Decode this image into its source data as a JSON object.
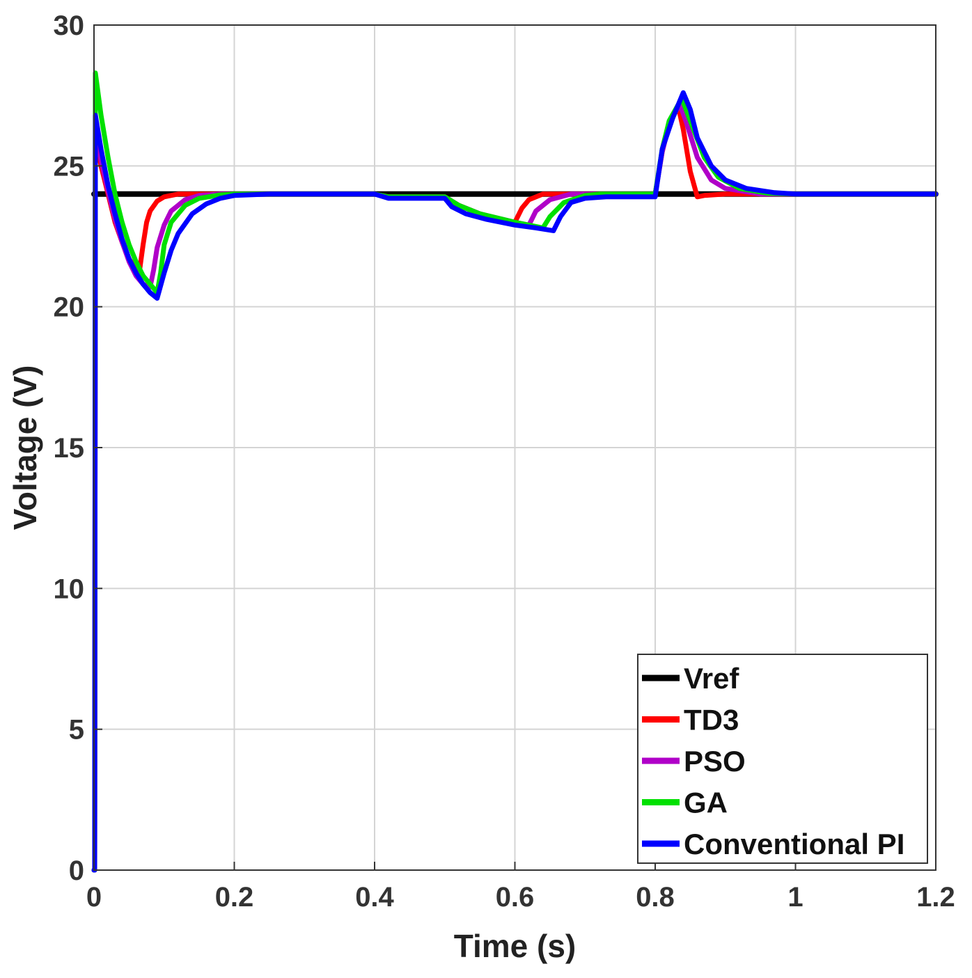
{
  "chart_data": {
    "type": "line",
    "title": "",
    "xlabel": "Time (s)",
    "ylabel": "Voltage (V)",
    "xlim": [
      0,
      1.2
    ],
    "ylim": [
      0,
      30
    ],
    "grid": true,
    "legend_position": "bottom-right",
    "x_ticks": [
      {
        "value": 0,
        "label": "0"
      },
      {
        "value": 0.2,
        "label": "0.2"
      },
      {
        "value": 0.4,
        "label": "0.4"
      },
      {
        "value": 0.6,
        "label": "0.6"
      },
      {
        "value": 0.8,
        "label": "0.8"
      },
      {
        "value": 1,
        "label": "1"
      },
      {
        "value": 1.2,
        "label": "1.2"
      }
    ],
    "y_ticks": [
      {
        "value": 0,
        "label": "0"
      },
      {
        "value": 5,
        "label": "5"
      },
      {
        "value": 10,
        "label": "10"
      },
      {
        "value": 15,
        "label": "15"
      },
      {
        "value": 20,
        "label": "20"
      },
      {
        "value": 25,
        "label": "25"
      },
      {
        "value": 30,
        "label": "30"
      }
    ],
    "series": [
      {
        "name": "Vref",
        "color": "#000000",
        "points": [
          [
            0,
            24
          ],
          [
            1.2,
            24
          ]
        ]
      },
      {
        "name": "TD3",
        "color": "#ff0000",
        "points": [
          [
            0,
            0
          ],
          [
            0.001,
            0
          ],
          [
            0.002,
            26.0
          ],
          [
            0.01,
            25.0
          ],
          [
            0.02,
            24.0
          ],
          [
            0.03,
            23.0
          ],
          [
            0.04,
            22.3
          ],
          [
            0.05,
            21.7
          ],
          [
            0.06,
            21.3
          ],
          [
            0.065,
            21.3
          ],
          [
            0.07,
            22.2
          ],
          [
            0.075,
            23.0
          ],
          [
            0.08,
            23.4
          ],
          [
            0.09,
            23.75
          ],
          [
            0.1,
            23.9
          ],
          [
            0.12,
            24.0
          ],
          [
            0.4,
            24.0
          ],
          [
            0.42,
            23.9
          ],
          [
            0.5,
            23.9
          ],
          [
            0.52,
            23.6
          ],
          [
            0.55,
            23.3
          ],
          [
            0.58,
            23.1
          ],
          [
            0.6,
            23.0
          ],
          [
            0.61,
            23.5
          ],
          [
            0.62,
            23.8
          ],
          [
            0.64,
            24.0
          ],
          [
            0.8,
            24.0
          ],
          [
            0.81,
            25.5
          ],
          [
            0.82,
            26.5
          ],
          [
            0.833,
            27.1
          ],
          [
            0.84,
            26.3
          ],
          [
            0.85,
            24.8
          ],
          [
            0.86,
            23.9
          ],
          [
            0.87,
            23.95
          ],
          [
            0.9,
            24.0
          ],
          [
            1.2,
            24.0
          ]
        ]
      },
      {
        "name": "PSO",
        "color": "#b000c8",
        "points": [
          [
            0,
            0
          ],
          [
            0.001,
            0
          ],
          [
            0.002,
            26.3
          ],
          [
            0.01,
            25.2
          ],
          [
            0.02,
            24.1
          ],
          [
            0.03,
            23.1
          ],
          [
            0.04,
            22.3
          ],
          [
            0.05,
            21.6
          ],
          [
            0.06,
            21.1
          ],
          [
            0.07,
            20.8
          ],
          [
            0.08,
            20.7
          ],
          [
            0.085,
            21.3
          ],
          [
            0.09,
            22.1
          ],
          [
            0.1,
            22.9
          ],
          [
            0.11,
            23.4
          ],
          [
            0.13,
            23.8
          ],
          [
            0.15,
            23.95
          ],
          [
            0.18,
            24.0
          ],
          [
            0.4,
            24.0
          ],
          [
            0.42,
            23.9
          ],
          [
            0.5,
            23.9
          ],
          [
            0.52,
            23.6
          ],
          [
            0.55,
            23.3
          ],
          [
            0.6,
            23.0
          ],
          [
            0.62,
            22.9
          ],
          [
            0.63,
            23.4
          ],
          [
            0.65,
            23.8
          ],
          [
            0.68,
            24.0
          ],
          [
            0.8,
            24.0
          ],
          [
            0.81,
            25.5
          ],
          [
            0.82,
            26.5
          ],
          [
            0.835,
            27.2
          ],
          [
            0.845,
            26.5
          ],
          [
            0.86,
            25.3
          ],
          [
            0.88,
            24.5
          ],
          [
            0.9,
            24.2
          ],
          [
            0.95,
            24.0
          ],
          [
            1.2,
            24.0
          ]
        ]
      },
      {
        "name": "GA",
        "color": "#00e000",
        "points": [
          [
            0,
            0
          ],
          [
            0.001,
            0
          ],
          [
            0.002,
            28.3
          ],
          [
            0.01,
            26.8
          ],
          [
            0.02,
            25.3
          ],
          [
            0.03,
            24.0
          ],
          [
            0.04,
            23.0
          ],
          [
            0.05,
            22.2
          ],
          [
            0.06,
            21.6
          ],
          [
            0.07,
            21.1
          ],
          [
            0.08,
            20.8
          ],
          [
            0.09,
            20.5
          ],
          [
            0.095,
            21.2
          ],
          [
            0.1,
            22.2
          ],
          [
            0.11,
            23.0
          ],
          [
            0.13,
            23.6
          ],
          [
            0.15,
            23.85
          ],
          [
            0.18,
            23.97
          ],
          [
            0.2,
            24.0
          ],
          [
            0.4,
            24.0
          ],
          [
            0.42,
            23.9
          ],
          [
            0.5,
            23.9
          ],
          [
            0.52,
            23.6
          ],
          [
            0.55,
            23.3
          ],
          [
            0.6,
            23.0
          ],
          [
            0.64,
            22.8
          ],
          [
            0.65,
            23.2
          ],
          [
            0.67,
            23.7
          ],
          [
            0.7,
            23.95
          ],
          [
            0.72,
            24.0
          ],
          [
            0.8,
            24.0
          ],
          [
            0.81,
            25.6
          ],
          [
            0.82,
            26.6
          ],
          [
            0.838,
            27.4
          ],
          [
            0.85,
            26.6
          ],
          [
            0.87,
            25.3
          ],
          [
            0.89,
            24.6
          ],
          [
            0.92,
            24.2
          ],
          [
            0.96,
            24.03
          ],
          [
            1.0,
            24.0
          ],
          [
            1.2,
            24.0
          ]
        ]
      },
      {
        "name": "Conventional PI",
        "color": "#0000ff",
        "points": [
          [
            0,
            0
          ],
          [
            0.001,
            0
          ],
          [
            0.002,
            26.8
          ],
          [
            0.01,
            25.6
          ],
          [
            0.02,
            24.3
          ],
          [
            0.03,
            23.3
          ],
          [
            0.04,
            22.4
          ],
          [
            0.05,
            21.7
          ],
          [
            0.06,
            21.2
          ],
          [
            0.07,
            20.8
          ],
          [
            0.08,
            20.5
          ],
          [
            0.09,
            20.3
          ],
          [
            0.1,
            21.2
          ],
          [
            0.11,
            22.0
          ],
          [
            0.12,
            22.6
          ],
          [
            0.14,
            23.3
          ],
          [
            0.16,
            23.65
          ],
          [
            0.18,
            23.85
          ],
          [
            0.2,
            23.95
          ],
          [
            0.25,
            24.0
          ],
          [
            0.4,
            24.0
          ],
          [
            0.42,
            23.85
          ],
          [
            0.5,
            23.85
          ],
          [
            0.51,
            23.55
          ],
          [
            0.53,
            23.3
          ],
          [
            0.56,
            23.1
          ],
          [
            0.6,
            22.9
          ],
          [
            0.63,
            22.8
          ],
          [
            0.655,
            22.7
          ],
          [
            0.665,
            23.2
          ],
          [
            0.68,
            23.7
          ],
          [
            0.7,
            23.85
          ],
          [
            0.73,
            23.9
          ],
          [
            0.8,
            23.9
          ],
          [
            0.81,
            25.6
          ],
          [
            0.825,
            26.7
          ],
          [
            0.84,
            27.6
          ],
          [
            0.85,
            27.0
          ],
          [
            0.86,
            26.0
          ],
          [
            0.88,
            25.0
          ],
          [
            0.9,
            24.5
          ],
          [
            0.93,
            24.2
          ],
          [
            0.97,
            24.05
          ],
          [
            1.0,
            24.0
          ],
          [
            1.2,
            24.0
          ]
        ]
      }
    ]
  }
}
